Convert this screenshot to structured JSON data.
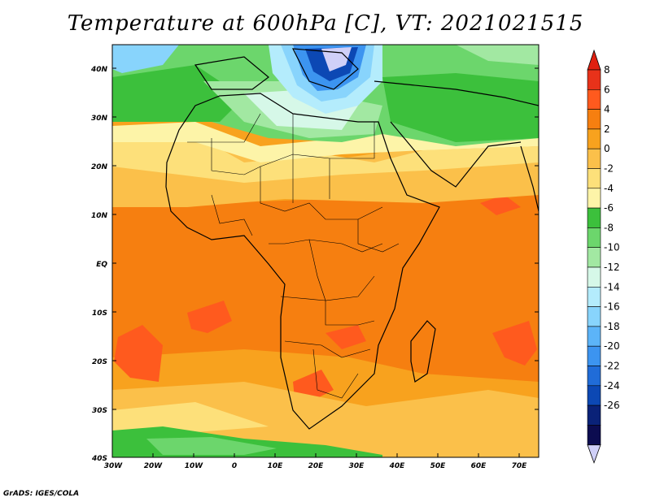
{
  "title": "Temperature at 600hPa [C], VT: 2021021515",
  "credit": "GrADS: IGES/COLA",
  "lat_labels": [
    "40N",
    "30N",
    "20N",
    "10N",
    "EQ",
    "10S",
    "20S",
    "30S",
    "40S"
  ],
  "lon_labels": [
    "30W",
    "20W",
    "10W",
    "0",
    "10E",
    "20E",
    "30E",
    "40E",
    "50E",
    "60E",
    "70E"
  ],
  "colorbar": {
    "labels": [
      "8",
      "6",
      "4",
      "2",
      "0",
      "-2",
      "-4",
      "-6",
      "-8",
      "-10",
      "-12",
      "-14",
      "-16",
      "-18",
      "-20",
      "-22",
      "-24",
      "-26"
    ],
    "colors": [
      "#e8321a",
      "#ff5a1e",
      "#f67f10",
      "#f8a21e",
      "#fbc04a",
      "#fde07a",
      "#fdf4a8",
      "#3cc03c",
      "#6cd66c",
      "#a2e8a2",
      "#d6f8e8",
      "#b4ecfc",
      "#88d4fc",
      "#5cb4f8",
      "#3c94f0",
      "#206cd8",
      "#0c48b4",
      "#0a2278",
      "#0c0c50"
    ],
    "top_arrow_color": "#e02010",
    "bottom_arrow_color": "#d0d0f8"
  }
}
